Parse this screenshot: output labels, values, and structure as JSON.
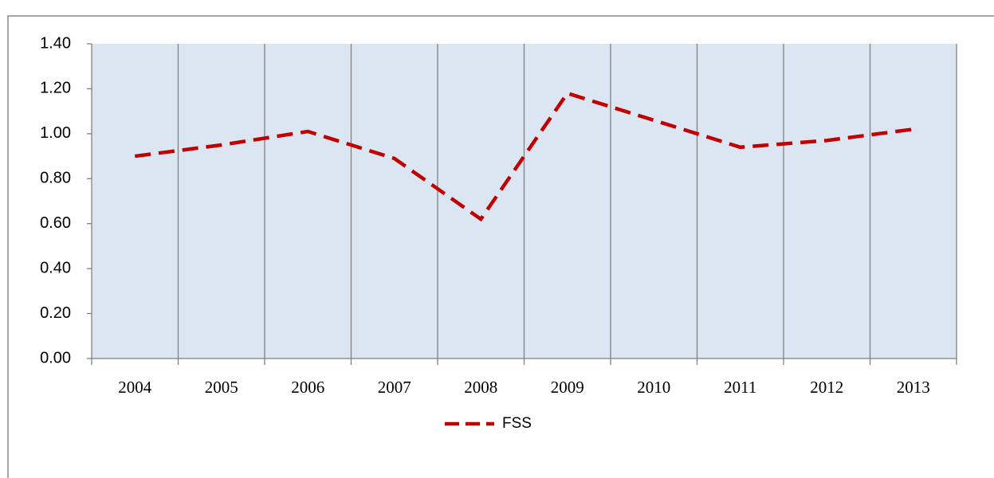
{
  "chart_data": {
    "type": "line",
    "categories": [
      "2004",
      "2005",
      "2006",
      "2007",
      "2008",
      "2009",
      "2010",
      "2011",
      "2012",
      "2013"
    ],
    "series": [
      {
        "name": "FSS",
        "color": "#c00000",
        "values": [
          0.9,
          0.95,
          1.01,
          0.89,
          0.62,
          1.18,
          1.06,
          0.94,
          0.97,
          1.02
        ]
      }
    ],
    "ylim": [
      0,
      1.4
    ],
    "yticks": [
      {
        "value": 0,
        "label": "0.00"
      },
      {
        "value": 0.2,
        "label": "0.20"
      },
      {
        "value": 0.4,
        "label": "0.40"
      },
      {
        "value": 0.6,
        "label": "0.60"
      },
      {
        "value": 0.8,
        "label": "0.80"
      },
      {
        "value": 1.0,
        "label": "1.00"
      },
      {
        "value": 1.2,
        "label": "1.20"
      },
      {
        "value": 1.4,
        "label": "1.40"
      }
    ],
    "plot_background": "#dce6f2",
    "grid": "vertical",
    "legend": "bottom"
  }
}
